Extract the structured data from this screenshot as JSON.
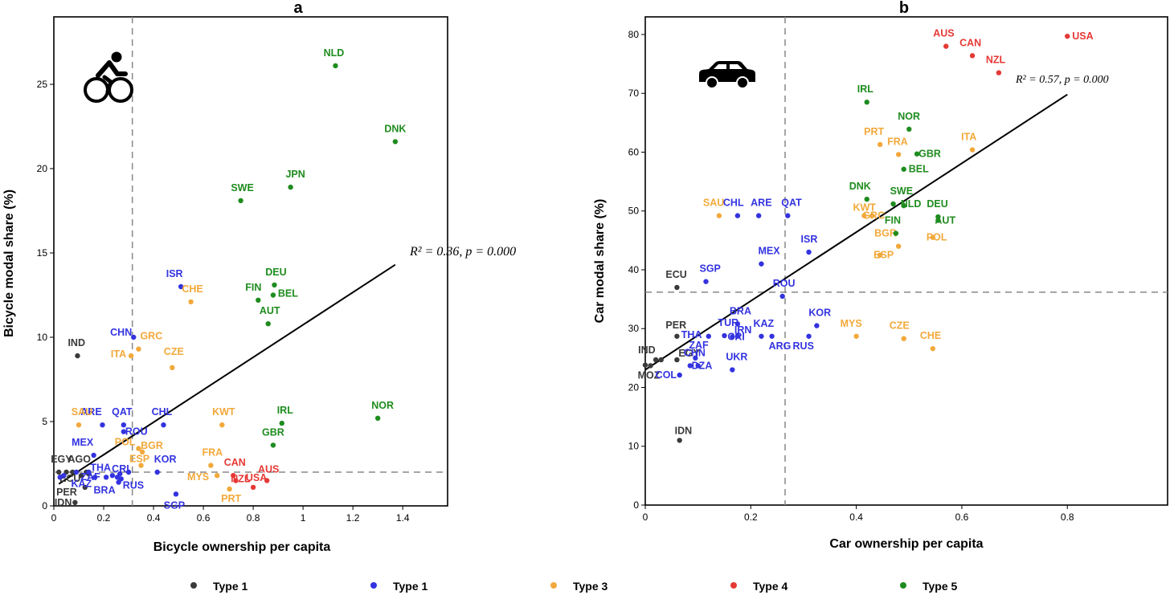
{
  "colors": {
    "type1a": "#3a3a3a",
    "type1b": "#3333e0",
    "type3": "#f2a93b",
    "type4": "#e53935",
    "type5": "#1e8c1e"
  },
  "legend": [
    {
      "label": "Type 1",
      "group": "type1a"
    },
    {
      "label": "Type 1",
      "group": "type1b"
    },
    {
      "label": "Type 3",
      "group": "type3"
    },
    {
      "label": "Type 4",
      "group": "type4"
    },
    {
      "label": "Type 5",
      "group": "type5"
    }
  ],
  "chart_data": [
    {
      "type": "scatter",
      "title": "a",
      "icon": "bicycle-icon",
      "xlabel": "Bicycle ownership per capita",
      "ylabel": "Bicycle modal share (%)",
      "xlim": [
        0,
        1.58
      ],
      "ylim": [
        0,
        29
      ],
      "xticks": [
        0,
        0.2,
        0.4,
        0.6,
        0.8,
        1,
        1.2,
        1.4
      ],
      "xtick_labels": [
        "0",
        "0.2",
        "0.4",
        "0.6",
        "0.8",
        "1",
        "1.2",
        "1.4"
      ],
      "yticks": [
        0,
        5,
        10,
        15,
        20,
        25
      ],
      "vline": 0.315,
      "hline": 2.0,
      "fit_line": {
        "x": [
          0.02,
          1.37
        ],
        "y": [
          1.3,
          14.3
        ]
      },
      "annotation": "R² = 0.36, p = 0.000",
      "points": [
        {
          "label": "IND",
          "group": "type1a",
          "x": 0.095,
          "y": 8.9
        },
        {
          "label": "EGY",
          "group": "type1a",
          "x": 0.02,
          "y": 2.0
        },
        {
          "label": "AGO",
          "group": "type1a",
          "x": 0.05,
          "y": 2.0
        },
        {
          "label": "PER",
          "group": "type1a",
          "x": 0.125,
          "y": 1.1
        },
        {
          "label": "ECU",
          "group": "type1a",
          "x": 0.14,
          "y": 1.9
        },
        {
          "label": "IDN",
          "group": "type1a",
          "x": 0.085,
          "y": 0.2
        },
        {
          "label": "",
          "group": "type1a",
          "x": 0.075,
          "y": 2.0
        },
        {
          "label": "",
          "group": "type1a",
          "x": 0.11,
          "y": 1.8
        },
        {
          "label": "",
          "group": "type1a",
          "x": 0.13,
          "y": 2.0
        },
        {
          "label": "CHN",
          "group": "type1b",
          "x": 0.32,
          "y": 10.0
        },
        {
          "label": "ISR",
          "group": "type1b",
          "x": 0.51,
          "y": 13.0
        },
        {
          "label": "ARE",
          "group": "type1b",
          "x": 0.195,
          "y": 4.8
        },
        {
          "label": "QAT",
          "group": "type1b",
          "x": 0.28,
          "y": 4.8
        },
        {
          "label": "CHL",
          "group": "type1b",
          "x": 0.44,
          "y": 4.8
        },
        {
          "label": "ROU",
          "group": "type1b",
          "x": 0.28,
          "y": 4.4
        },
        {
          "label": "MEX",
          "group": "type1b",
          "x": 0.16,
          "y": 3.0
        },
        {
          "label": "ZAF",
          "group": "type1b",
          "x": 0.14,
          "y": 2.0
        },
        {
          "label": "THA",
          "group": "type1b",
          "x": 0.255,
          "y": 1.7
        },
        {
          "label": "CRI",
          "group": "type1b",
          "x": 0.265,
          "y": 1.9
        },
        {
          "label": "KAZ",
          "group": "type1b",
          "x": 0.165,
          "y": 1.7
        },
        {
          "label": "BRA",
          "group": "type1b",
          "x": 0.26,
          "y": 1.4
        },
        {
          "label": "RUS",
          "group": "type1b",
          "x": 0.27,
          "y": 1.6
        },
        {
          "label": "KOR",
          "group": "type1b",
          "x": 0.415,
          "y": 2.0
        },
        {
          "label": "SGP",
          "group": "type1b",
          "x": 0.49,
          "y": 0.7
        },
        {
          "label": "",
          "group": "type1b",
          "x": 0.025,
          "y": 1.7
        },
        {
          "label": "",
          "group": "type1b",
          "x": 0.04,
          "y": 1.8
        },
        {
          "label": "",
          "group": "type1b",
          "x": 0.09,
          "y": 2.0
        },
        {
          "label": "",
          "group": "type1b",
          "x": 0.21,
          "y": 1.7
        },
        {
          "label": "",
          "group": "type1b",
          "x": 0.235,
          "y": 1.8
        },
        {
          "label": "",
          "group": "type1b",
          "x": 0.3,
          "y": 2.0
        },
        {
          "label": "SAU",
          "group": "type3",
          "x": 0.1,
          "y": 4.8
        },
        {
          "label": "GRC",
          "group": "type3",
          "x": 0.34,
          "y": 9.3
        },
        {
          "label": "ITA",
          "group": "type3",
          "x": 0.31,
          "y": 8.9
        },
        {
          "label": "CHE",
          "group": "type3",
          "x": 0.55,
          "y": 12.1
        },
        {
          "label": "CZE",
          "group": "type3",
          "x": 0.475,
          "y": 8.2
        },
        {
          "label": "KWT",
          "group": "type3",
          "x": 0.675,
          "y": 4.8
        },
        {
          "label": "BGR",
          "group": "type3",
          "x": 0.355,
          "y": 3.2
        },
        {
          "label": "POL",
          "group": "type3",
          "x": 0.34,
          "y": 3.4
        },
        {
          "label": "ESP",
          "group": "type3",
          "x": 0.35,
          "y": 2.4
        },
        {
          "label": "FRA",
          "group": "type3",
          "x": 0.63,
          "y": 2.4
        },
        {
          "label": "MYS",
          "group": "type3",
          "x": 0.655,
          "y": 1.8
        },
        {
          "label": "PRT",
          "group": "type3",
          "x": 0.705,
          "y": 1.0
        },
        {
          "label": "CAN",
          "group": "type4",
          "x": 0.72,
          "y": 1.8
        },
        {
          "label": "NZL",
          "group": "type4",
          "x": 0.73,
          "y": 1.5
        },
        {
          "label": "USA",
          "group": "type4",
          "x": 0.8,
          "y": 1.1
        },
        {
          "label": "AUS",
          "group": "type4",
          "x": 0.855,
          "y": 1.5
        },
        {
          "label": "NLD",
          "group": "type5",
          "x": 1.13,
          "y": 26.1
        },
        {
          "label": "DNK",
          "group": "type5",
          "x": 1.37,
          "y": 21.6
        },
        {
          "label": "SWE",
          "group": "type5",
          "x": 0.75,
          "y": 18.1
        },
        {
          "label": "JPN",
          "group": "type5",
          "x": 0.95,
          "y": 18.9
        },
        {
          "label": "DEU",
          "group": "type5",
          "x": 0.885,
          "y": 13.1
        },
        {
          "label": "FIN",
          "group": "type5",
          "x": 0.82,
          "y": 12.2
        },
        {
          "label": "BEL",
          "group": "type5",
          "x": 0.88,
          "y": 12.5
        },
        {
          "label": "AUT",
          "group": "type5",
          "x": 0.86,
          "y": 10.8
        },
        {
          "label": "IRL",
          "group": "type5",
          "x": 0.915,
          "y": 4.9
        },
        {
          "label": "GBR",
          "group": "type5",
          "x": 0.88,
          "y": 3.6
        },
        {
          "label": "NOR",
          "group": "type5",
          "x": 1.3,
          "y": 5.2
        }
      ]
    },
    {
      "type": "scatter",
      "title": "b",
      "icon": "car-icon",
      "xlabel": "Car ownership per capita",
      "ylabel": "Car modal share (%)",
      "xlim": [
        0,
        0.99
      ],
      "ylim": [
        0,
        83
      ],
      "xticks": [
        0,
        0.2,
        0.4,
        0.6,
        0.8
      ],
      "xtick_labels": [
        "0",
        "0.2",
        "0.4",
        "0.6",
        "0.8"
      ],
      "yticks": [
        0,
        10,
        20,
        30,
        40,
        50,
        60,
        70,
        80
      ],
      "vline": 0.265,
      "hline": 36.2,
      "fit_line": {
        "x": [
          0.0,
          0.8
        ],
        "y": [
          23.0,
          69.8
        ]
      },
      "annotation": "R² = 0.57, p = 0.000",
      "points": [
        {
          "label": "ECU",
          "group": "type1a",
          "x": 0.06,
          "y": 37.0
        },
        {
          "label": "PER",
          "group": "type1a",
          "x": 0.06,
          "y": 28.7
        },
        {
          "label": "IND",
          "group": "type1a",
          "x": 0.02,
          "y": 24.7
        },
        {
          "label": "EGY",
          "group": "type1a",
          "x": 0.06,
          "y": 24.7
        },
        {
          "label": "MOZ",
          "group": "type1a",
          "x": 0.01,
          "y": 23.7
        },
        {
          "label": "IDN",
          "group": "type1a",
          "x": 0.065,
          "y": 11.0
        },
        {
          "label": "",
          "group": "type1a",
          "x": 0.0,
          "y": 23.8
        },
        {
          "label": "",
          "group": "type1a",
          "x": 0.03,
          "y": 24.7
        },
        {
          "label": "CHL",
          "group": "type1b",
          "x": 0.175,
          "y": 49.2
        },
        {
          "label": "ARE",
          "group": "type1b",
          "x": 0.215,
          "y": 49.2
        },
        {
          "label": "QAT",
          "group": "type1b",
          "x": 0.27,
          "y": 49.2
        },
        {
          "label": "SGP",
          "group": "type1b",
          "x": 0.115,
          "y": 38.0
        },
        {
          "label": "MEX",
          "group": "type1b",
          "x": 0.22,
          "y": 41.0
        },
        {
          "label": "ISR",
          "group": "type1b",
          "x": 0.31,
          "y": 43.0
        },
        {
          "label": "ROU",
          "group": "type1b",
          "x": 0.26,
          "y": 35.5
        },
        {
          "label": "BRA",
          "group": "type1b",
          "x": 0.175,
          "y": 30.8
        },
        {
          "label": "TUR",
          "group": "type1b",
          "x": 0.15,
          "y": 28.8
        },
        {
          "label": "THA",
          "group": "type1b",
          "x": 0.12,
          "y": 28.7
        },
        {
          "label": "IRN",
          "group": "type1b",
          "x": 0.175,
          "y": 28.7
        },
        {
          "label": "KAZ",
          "group": "type1b",
          "x": 0.22,
          "y": 28.7
        },
        {
          "label": "ARG",
          "group": "type1b",
          "x": 0.24,
          "y": 28.7
        },
        {
          "label": "RUS",
          "group": "type1b",
          "x": 0.31,
          "y": 28.7
        },
        {
          "label": "KOR",
          "group": "type1b",
          "x": 0.325,
          "y": 30.5
        },
        {
          "label": "ZAF",
          "group": "type1b",
          "x": 0.095,
          "y": 25.0
        },
        {
          "label": "CRI",
          "group": "type1b",
          "x": 0.165,
          "y": 28.6
        },
        {
          "label": "DZA",
          "group": "type1b",
          "x": 0.1,
          "y": 23.7
        },
        {
          "label": "UKR",
          "group": "type1b",
          "x": 0.165,
          "y": 23.0
        },
        {
          "label": "COL",
          "group": "type1b",
          "x": 0.065,
          "y": 22.1
        },
        {
          "label": "CHN",
          "group": "type1b",
          "x": 0.085,
          "y": 23.7
        },
        {
          "label": "SAU",
          "group": "type3",
          "x": 0.14,
          "y": 49.2
        },
        {
          "label": "PRT",
          "group": "type3",
          "x": 0.445,
          "y": 61.3
        },
        {
          "label": "FRA",
          "group": "type3",
          "x": 0.48,
          "y": 59.6
        },
        {
          "label": "ITA",
          "group": "type3",
          "x": 0.62,
          "y": 60.4
        },
        {
          "label": "KWT",
          "group": "type3",
          "x": 0.415,
          "y": 49.2
        },
        {
          "label": "GRC",
          "group": "type3",
          "x": 0.43,
          "y": 49.2
        },
        {
          "label": "BGR",
          "group": "type3",
          "x": 0.48,
          "y": 44.0
        },
        {
          "label": "ESP",
          "group": "type3",
          "x": 0.445,
          "y": 42.5
        },
        {
          "label": "POL",
          "group": "type3",
          "x": 0.545,
          "y": 45.5
        },
        {
          "label": "MYS",
          "group": "type3",
          "x": 0.4,
          "y": 28.7
        },
        {
          "label": "CZE",
          "group": "type3",
          "x": 0.49,
          "y": 28.3
        },
        {
          "label": "CHE",
          "group": "type3",
          "x": 0.545,
          "y": 26.6
        },
        {
          "label": "AUS",
          "group": "type4",
          "x": 0.57,
          "y": 78.0
        },
        {
          "label": "CAN",
          "group": "type4",
          "x": 0.62,
          "y": 76.4
        },
        {
          "label": "USA",
          "group": "type4",
          "x": 0.8,
          "y": 79.7
        },
        {
          "label": "NZL",
          "group": "type4",
          "x": 0.67,
          "y": 73.5
        },
        {
          "label": "IRL",
          "group": "type5",
          "x": 0.42,
          "y": 68.5
        },
        {
          "label": "NOR",
          "group": "type5",
          "x": 0.5,
          "y": 63.9
        },
        {
          "label": "GBR",
          "group": "type5",
          "x": 0.515,
          "y": 59.7
        },
        {
          "label": "BEL",
          "group": "type5",
          "x": 0.49,
          "y": 57.1
        },
        {
          "label": "DNK",
          "group": "type5",
          "x": 0.42,
          "y": 52.0
        },
        {
          "label": "SWE",
          "group": "type5",
          "x": 0.47,
          "y": 51.2
        },
        {
          "label": "NLD",
          "group": "type5",
          "x": 0.49,
          "y": 50.9
        },
        {
          "label": "DEU",
          "group": "type5",
          "x": 0.555,
          "y": 49.0
        },
        {
          "label": "AUT",
          "group": "type5",
          "x": 0.555,
          "y": 48.4
        },
        {
          "label": "FIN",
          "group": "type5",
          "x": 0.475,
          "y": 46.2
        }
      ]
    }
  ]
}
